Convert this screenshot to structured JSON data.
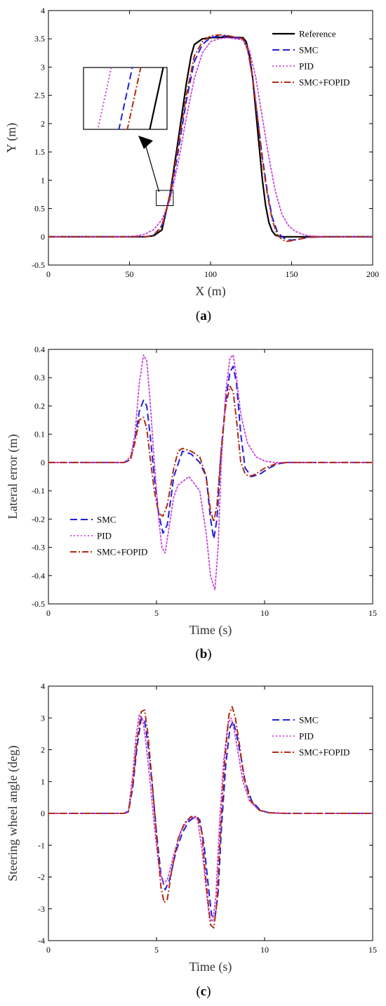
{
  "colors": {
    "Reference": "#000000",
    "SMC": "#1f1fe0",
    "PID": "#cc44dd",
    "SMC+FOPID": "#b22a12"
  },
  "chart_data": [
    {
      "type": "line",
      "panel_label_pre": "(",
      "panel_label_letter": "a",
      "panel_label_post": ")",
      "xlabel": "X (m)",
      "ylabel": "Y (m)",
      "xlim": [
        0,
        200
      ],
      "ylim": [
        -0.5,
        4
      ],
      "xticks": [
        "0",
        "50",
        "100",
        "150",
        "200"
      ],
      "yticks": [
        "-0.5",
        "0",
        "0.5",
        "1",
        "1.5",
        "2",
        "2.5",
        "3",
        "3.5",
        "4"
      ],
      "legend_position": "top-right",
      "inset": "zoomed view of the rising edge near X = 75 m, Y = 0.7 m",
      "series": [
        {
          "name": "Reference",
          "x": [
            0,
            50,
            60,
            65,
            70,
            75,
            80,
            85,
            88,
            90,
            95,
            100,
            110,
            120,
            122,
            124,
            126,
            128,
            130,
            132,
            134,
            136,
            138,
            140,
            142,
            145,
            150,
            200
          ],
          "y": [
            0,
            0,
            0,
            0.02,
            0.12,
            0.75,
            1.7,
            2.7,
            3.2,
            3.4,
            3.5,
            3.52,
            3.53,
            3.52,
            3.45,
            3.2,
            2.8,
            2.2,
            1.6,
            1.0,
            0.55,
            0.25,
            0.1,
            0.03,
            0.01,
            0,
            0,
            0
          ]
        },
        {
          "name": "SMC",
          "x": [
            0,
            50,
            60,
            65,
            70,
            75,
            80,
            85,
            90,
            95,
            100,
            105,
            110,
            120,
            123,
            126,
            129,
            132,
            135,
            138,
            141,
            144,
            147,
            150,
            155,
            160,
            170,
            200
          ],
          "y": [
            0,
            0,
            0,
            0.03,
            0.2,
            0.7,
            1.5,
            2.4,
            3.1,
            3.4,
            3.52,
            3.55,
            3.55,
            3.5,
            3.3,
            2.8,
            2.1,
            1.4,
            0.8,
            0.35,
            0.1,
            0,
            -0.05,
            -0.06,
            -0.04,
            -0.01,
            0,
            0
          ]
        },
        {
          "name": "PID",
          "x": [
            0,
            50,
            55,
            60,
            65,
            70,
            75,
            80,
            85,
            90,
            95,
            100,
            105,
            110,
            120,
            124,
            128,
            132,
            136,
            140,
            144,
            148,
            152,
            156,
            160,
            170,
            200
          ],
          "y": [
            0,
            0,
            0.02,
            0.05,
            0.13,
            0.3,
            0.65,
            1.3,
            2.1,
            2.8,
            3.25,
            3.45,
            3.5,
            3.52,
            3.48,
            3.3,
            2.8,
            2.1,
            1.4,
            0.8,
            0.4,
            0.2,
            0.1,
            0.05,
            0.02,
            0,
            0
          ]
        },
        {
          "name": "SMC+FOPID",
          "x": [
            0,
            50,
            60,
            65,
            70,
            75,
            80,
            85,
            90,
            95,
            100,
            105,
            110,
            120,
            123,
            126,
            129,
            132,
            135,
            138,
            141,
            144,
            147,
            150,
            155,
            160,
            170,
            200
          ],
          "y": [
            0,
            0,
            0,
            0.03,
            0.18,
            0.72,
            1.6,
            2.5,
            3.2,
            3.45,
            3.55,
            3.57,
            3.56,
            3.5,
            3.3,
            2.8,
            2.1,
            1.35,
            0.75,
            0.3,
            0.05,
            -0.05,
            -0.08,
            -0.07,
            -0.04,
            -0.01,
            0,
            0
          ]
        }
      ]
    },
    {
      "type": "line",
      "panel_label_pre": "(",
      "panel_label_letter": "b",
      "panel_label_post": ")",
      "xlabel": "Time (s)",
      "ylabel": "Lateral error (m)",
      "xlim": [
        0,
        15
      ],
      "ylim": [
        -0.5,
        0.4
      ],
      "xticks": [
        "0",
        "5",
        "10",
        "15"
      ],
      "yticks": [
        "-0.5",
        "-0.4",
        "-0.3",
        "-0.2",
        "-0.1",
        "0",
        "0.1",
        "0.2",
        "0.3",
        "0.4"
      ],
      "legend_position": "bottom-left",
      "series": [
        {
          "name": "SMC",
          "x": [
            0,
            3.5,
            3.8,
            4,
            4.2,
            4.4,
            4.55,
            4.7,
            4.9,
            5.1,
            5.3,
            5.5,
            5.8,
            6.2,
            6.6,
            7,
            7.3,
            7.5,
            7.65,
            7.8,
            8,
            8.2,
            8.4,
            8.55,
            8.7,
            8.9,
            9.1,
            9.4,
            9.8,
            10.2,
            10.6,
            11,
            12,
            15
          ],
          "y": [
            0,
            0,
            0.01,
            0.08,
            0.18,
            0.22,
            0.2,
            0.1,
            -0.05,
            -0.18,
            -0.25,
            -0.22,
            -0.05,
            0.04,
            0.03,
            0,
            -0.05,
            -0.2,
            -0.27,
            -0.2,
            0.05,
            0.22,
            0.32,
            0.34,
            0.28,
            0.1,
            -0.02,
            -0.05,
            -0.04,
            -0.02,
            -0.005,
            0,
            0,
            0
          ]
        },
        {
          "name": "PID",
          "x": [
            0,
            3.5,
            3.8,
            4,
            4.2,
            4.4,
            4.55,
            4.7,
            4.9,
            5.1,
            5.25,
            5.4,
            5.6,
            5.8,
            6,
            6.5,
            7,
            7.3,
            7.5,
            7.7,
            7.85,
            8,
            8.2,
            8.4,
            8.55,
            8.7,
            8.9,
            9.2,
            9.6,
            10,
            10.5,
            11,
            12,
            15
          ],
          "y": [
            0,
            0,
            0.02,
            0.1,
            0.28,
            0.38,
            0.36,
            0.22,
            0,
            -0.2,
            -0.3,
            -0.32,
            -0.22,
            -0.12,
            -0.08,
            -0.05,
            -0.1,
            -0.25,
            -0.4,
            -0.45,
            -0.3,
            0,
            0.25,
            0.37,
            0.38,
            0.3,
            0.17,
            0.07,
            0.02,
            0.005,
            0,
            0,
            0,
            0
          ]
        },
        {
          "name": "SMC+FOPID",
          "x": [
            0,
            3.5,
            3.8,
            4,
            4.2,
            4.4,
            4.55,
            4.7,
            4.9,
            5.1,
            5.3,
            5.5,
            5.8,
            6,
            6.2,
            6.6,
            7,
            7.3,
            7.5,
            7.65,
            7.8,
            8,
            8.2,
            8.4,
            8.55,
            8.7,
            8.9,
            9.1,
            9.3,
            9.6,
            10,
            10.5,
            11,
            12,
            15
          ],
          "y": [
            0,
            0,
            0.01,
            0.07,
            0.15,
            0.16,
            0.12,
            0.02,
            -0.1,
            -0.18,
            -0.19,
            -0.15,
            -0.02,
            0.04,
            0.05,
            0.04,
            0.02,
            -0.05,
            -0.17,
            -0.21,
            -0.15,
            0.05,
            0.2,
            0.27,
            0.25,
            0.15,
            0,
            -0.04,
            -0.05,
            -0.04,
            -0.02,
            -0.005,
            0,
            0,
            0
          ]
        }
      ]
    },
    {
      "type": "line",
      "panel_label_pre": "(",
      "panel_label_letter": "c",
      "panel_label_post": ")",
      "xlabel": "Time (s)",
      "ylabel": "Steering wheel angle (deg)",
      "xlim": [
        0,
        15
      ],
      "ylim": [
        -4,
        4
      ],
      "xticks": [
        "0",
        "5",
        "10",
        "15"
      ],
      "yticks": [
        "-4",
        "-3",
        "-2",
        "-1",
        "0",
        "1",
        "2",
        "3",
        "4"
      ],
      "legend_position": "top-right",
      "series": [
        {
          "name": "SMC",
          "x": [
            0,
            3.5,
            3.7,
            3.9,
            4.1,
            4.3,
            4.45,
            4.6,
            4.8,
            5,
            5.2,
            5.4,
            5.6,
            5.9,
            6.2,
            6.5,
            6.8,
            7,
            7.2,
            7.4,
            7.55,
            7.7,
            7.85,
            8,
            8.2,
            8.4,
            8.55,
            8.7,
            8.9,
            9.1,
            9.4,
            9.8,
            10.2,
            11,
            15
          ],
          "y": [
            0,
            0,
            0.05,
            0.8,
            2.1,
            3.0,
            2.9,
            2.2,
            0.9,
            -0.6,
            -1.9,
            -2.4,
            -2.1,
            -1.2,
            -0.6,
            -0.25,
            -0.1,
            -0.2,
            -1,
            -2.3,
            -3.2,
            -3.3,
            -2.5,
            -0.5,
            1.5,
            2.7,
            2.9,
            2.5,
            1.8,
            1.0,
            0.4,
            0.1,
            0.02,
            0,
            0
          ]
        },
        {
          "name": "PID",
          "x": [
            0,
            3.5,
            3.7,
            3.9,
            4.05,
            4.2,
            4.35,
            4.5,
            4.7,
            4.9,
            5.1,
            5.3,
            5.5,
            5.8,
            6.1,
            6.4,
            6.7,
            6.9,
            7.1,
            7.3,
            7.45,
            7.6,
            7.75,
            7.9,
            8.1,
            8.3,
            8.45,
            8.6,
            8.8,
            9,
            9.3,
            9.7,
            10.1,
            11,
            15
          ],
          "y": [
            0,
            0,
            0.1,
            1.2,
            2.4,
            3.1,
            3.0,
            2.3,
            1.0,
            -0.4,
            -1.6,
            -2.2,
            -2.1,
            -1.3,
            -0.6,
            -0.25,
            -0.1,
            -0.2,
            -1.1,
            -2.4,
            -3.3,
            -3.4,
            -2.6,
            -0.5,
            1.6,
            2.8,
            3.0,
            2.6,
            1.8,
            1.0,
            0.4,
            0.12,
            0.03,
            0,
            0
          ]
        },
        {
          "name": "SMC+FOPID",
          "x": [
            0,
            3.5,
            3.7,
            3.9,
            4.1,
            4.3,
            4.45,
            4.6,
            4.8,
            5,
            5.2,
            5.35,
            5.5,
            5.7,
            6,
            6.3,
            6.6,
            6.9,
            7.1,
            7.3,
            7.5,
            7.65,
            7.8,
            7.95,
            8.15,
            8.35,
            8.5,
            8.65,
            8.85,
            9.05,
            9.35,
            9.75,
            10.15,
            11,
            15
          ],
          "y": [
            0,
            0,
            0.05,
            0.9,
            2.3,
            3.2,
            3.25,
            2.5,
            1.0,
            -0.7,
            -2.3,
            -2.8,
            -2.7,
            -1.8,
            -0.8,
            -0.3,
            -0.1,
            -0.1,
            -0.6,
            -2.2,
            -3.5,
            -3.6,
            -2.8,
            -0.6,
            1.6,
            3.1,
            3.35,
            3.0,
            2.1,
            1.1,
            0.4,
            0.1,
            0.02,
            0,
            0
          ]
        }
      ]
    }
  ]
}
